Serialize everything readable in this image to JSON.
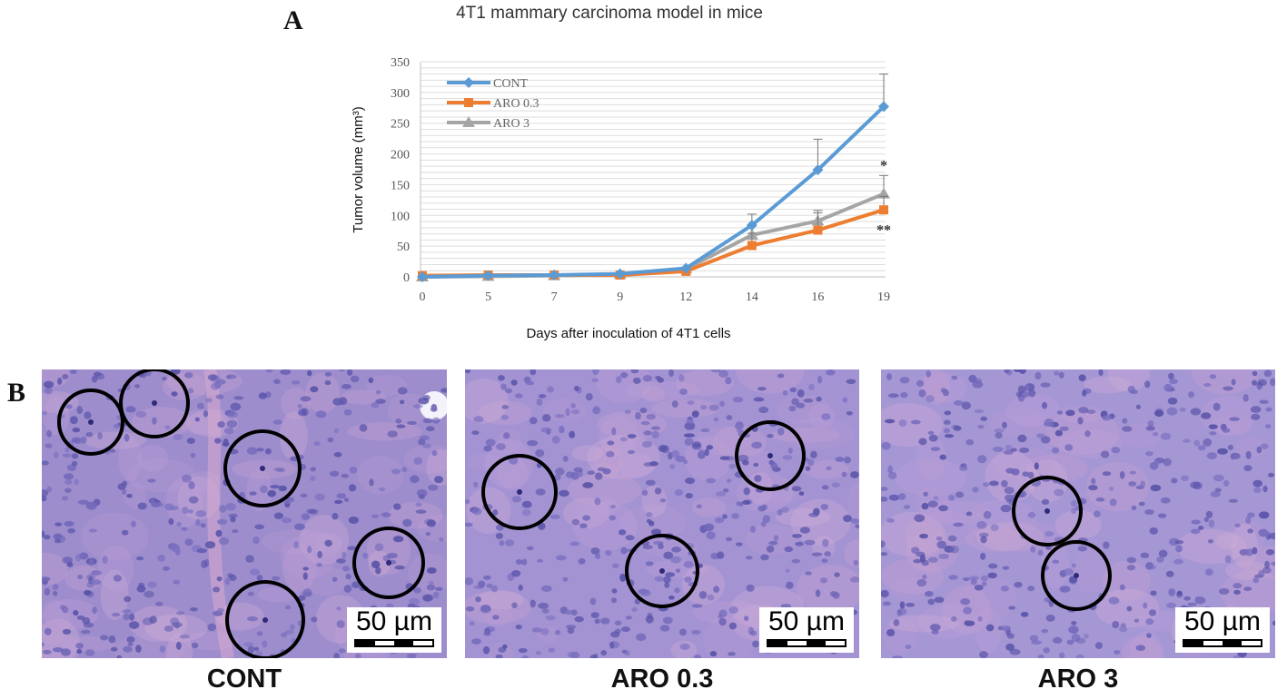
{
  "panel_labels": {
    "a": "A",
    "b": "B"
  },
  "chart_data": {
    "type": "line",
    "title": "4T1 mammary carcinoma model in mice",
    "xlabel": "Days after inoculation of 4T1 cells",
    "ylabel": "Tumor volume (mm³)",
    "ylim": [
      0,
      350
    ],
    "yticks": [
      "0",
      "50",
      "100",
      "150",
      "200",
      "250",
      "300",
      "350"
    ],
    "categories": [
      "0",
      "5",
      "7",
      "9",
      "12",
      "14",
      "16",
      "19"
    ],
    "grid": true,
    "legend_position": "top-left",
    "series": [
      {
        "name": "CONT",
        "color": "#5b9bd5",
        "marker": "diamond",
        "values": [
          0,
          2,
          3,
          5,
          14,
          84,
          174,
          277
        ],
        "errors": [
          0,
          0,
          0,
          0,
          0,
          18,
          50,
          53
        ]
      },
      {
        "name": "ARO 0.3",
        "color": "#ed7d31",
        "marker": "square",
        "values": [
          2,
          3,
          3,
          3,
          9,
          51,
          76,
          109
        ],
        "errors": [
          0,
          0,
          0,
          0,
          0,
          20,
          28,
          22
        ]
      },
      {
        "name": "ARO 3",
        "color": "#a5a5a5",
        "marker": "triangle",
        "values": [
          0,
          1,
          2,
          4,
          13,
          68,
          91,
          135
        ],
        "errors": [
          0,
          0,
          0,
          0,
          0,
          0,
          17,
          30
        ]
      }
    ],
    "annotations": [
      {
        "text": "*",
        "category": "19",
        "series": "ARO 3"
      },
      {
        "text": "**",
        "category": "19",
        "series": "ARO 0.3"
      }
    ]
  },
  "micrographs": [
    {
      "label": "CONT",
      "scale_text": "50 µm",
      "base_color": "#9d8dcd"
    },
    {
      "label": "ARO 0.3",
      "scale_text": "50 µm",
      "base_color": "#a393d3"
    },
    {
      "label": "ARO 3",
      "scale_text": "50 µm",
      "base_color": "#a596d4"
    }
  ]
}
